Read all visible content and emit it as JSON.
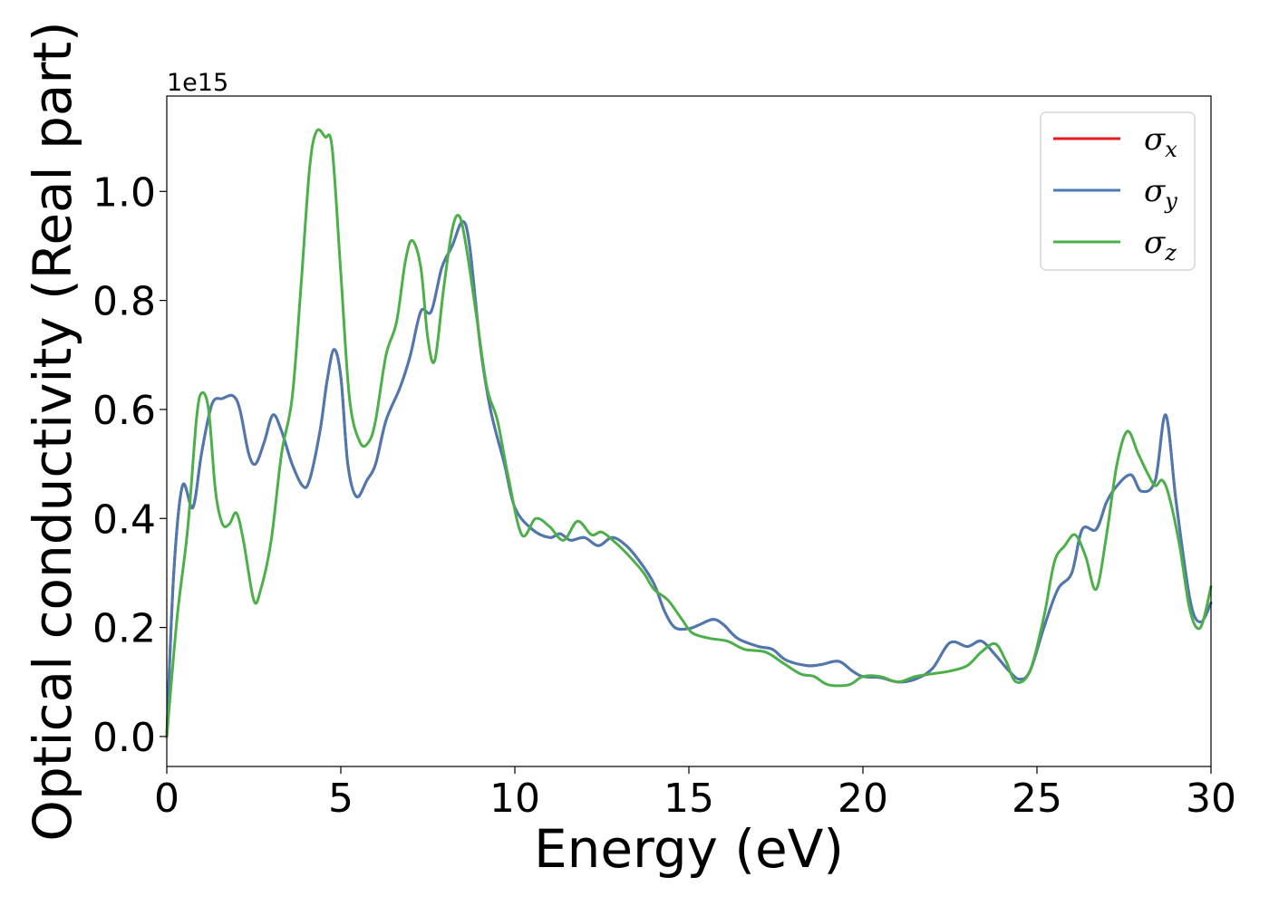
{
  "chart_data": {
    "type": "line",
    "title": "",
    "xlabel": "Energy (eV)",
    "ylabel": "Optical conductivity (Real part)",
    "y_offset_text": "1e15",
    "xlim": [
      0,
      30
    ],
    "ylim": [
      -0.055,
      1.175
    ],
    "xticks": [
      0,
      5,
      10,
      15,
      20,
      25,
      30
    ],
    "xtick_labels": [
      "0",
      "5",
      "10",
      "15",
      "20",
      "25",
      "30"
    ],
    "yticks": [
      0.0,
      0.2,
      0.4,
      0.6,
      0.8,
      1.0
    ],
    "ytick_labels": [
      "0.0",
      "0.2",
      "0.4",
      "0.6",
      "0.8",
      "1.0"
    ],
    "grid": false,
    "legend_position": "upper-right",
    "series": [
      {
        "name": "σx",
        "symbol": "σ",
        "subscript": "x",
        "color": "#e41a1c",
        "points": [
          [
            0,
            0.0
          ],
          [
            0.2,
            0.3
          ],
          [
            0.45,
            0.46
          ],
          [
            0.75,
            0.42
          ],
          [
            1.0,
            0.52
          ],
          [
            1.3,
            0.61
          ],
          [
            1.6,
            0.62
          ],
          [
            1.9,
            0.625
          ],
          [
            2.1,
            0.6
          ],
          [
            2.35,
            0.52
          ],
          [
            2.55,
            0.5
          ],
          [
            2.8,
            0.54
          ],
          [
            3.05,
            0.59
          ],
          [
            3.3,
            0.56
          ],
          [
            3.6,
            0.5
          ],
          [
            3.9,
            0.46
          ],
          [
            4.1,
            0.47
          ],
          [
            4.4,
            0.56
          ],
          [
            4.6,
            0.65
          ],
          [
            4.8,
            0.71
          ],
          [
            5.0,
            0.66
          ],
          [
            5.2,
            0.5
          ],
          [
            5.45,
            0.44
          ],
          [
            5.75,
            0.47
          ],
          [
            6.0,
            0.5
          ],
          [
            6.3,
            0.58
          ],
          [
            6.7,
            0.64
          ],
          [
            7.0,
            0.7
          ],
          [
            7.3,
            0.78
          ],
          [
            7.6,
            0.78
          ],
          [
            7.9,
            0.86
          ],
          [
            8.2,
            0.9
          ],
          [
            8.5,
            0.945
          ],
          [
            8.7,
            0.9
          ],
          [
            9.0,
            0.72
          ],
          [
            9.3,
            0.6
          ],
          [
            9.7,
            0.5
          ],
          [
            10.0,
            0.42
          ],
          [
            10.5,
            0.38
          ],
          [
            11.0,
            0.365
          ],
          [
            11.3,
            0.372
          ],
          [
            11.6,
            0.36
          ],
          [
            12.0,
            0.365
          ],
          [
            12.4,
            0.35
          ],
          [
            12.8,
            0.365
          ],
          [
            13.2,
            0.35
          ],
          [
            13.6,
            0.32
          ],
          [
            14.0,
            0.28
          ],
          [
            14.3,
            0.23
          ],
          [
            14.6,
            0.2
          ],
          [
            15.0,
            0.198
          ],
          [
            15.3,
            0.205
          ],
          [
            15.7,
            0.215
          ],
          [
            16.0,
            0.205
          ],
          [
            16.4,
            0.18
          ],
          [
            17.0,
            0.165
          ],
          [
            17.4,
            0.16
          ],
          [
            17.8,
            0.14
          ],
          [
            18.4,
            0.13
          ],
          [
            18.8,
            0.132
          ],
          [
            19.3,
            0.138
          ],
          [
            19.7,
            0.12
          ],
          [
            20.0,
            0.11
          ],
          [
            20.5,
            0.108
          ],
          [
            21.0,
            0.1
          ],
          [
            21.5,
            0.105
          ],
          [
            22.0,
            0.125
          ],
          [
            22.5,
            0.172
          ],
          [
            23.0,
            0.165
          ],
          [
            23.4,
            0.175
          ],
          [
            23.8,
            0.15
          ],
          [
            24.2,
            0.12
          ],
          [
            24.5,
            0.105
          ],
          [
            24.8,
            0.12
          ],
          [
            25.2,
            0.2
          ],
          [
            25.6,
            0.27
          ],
          [
            26.0,
            0.3
          ],
          [
            26.3,
            0.38
          ],
          [
            26.7,
            0.38
          ],
          [
            27.0,
            0.43
          ],
          [
            27.3,
            0.46
          ],
          [
            27.7,
            0.48
          ],
          [
            28.0,
            0.45
          ],
          [
            28.4,
            0.47
          ],
          [
            28.7,
            0.59
          ],
          [
            29.0,
            0.43
          ],
          [
            29.4,
            0.25
          ],
          [
            29.7,
            0.21
          ],
          [
            30.0,
            0.245
          ]
        ]
      },
      {
        "name": "σy",
        "symbol": "σ",
        "subscript": "y",
        "color": "#4a7ab0",
        "points": [
          [
            0,
            0.0
          ],
          [
            0.2,
            0.3
          ],
          [
            0.45,
            0.46
          ],
          [
            0.75,
            0.42
          ],
          [
            1.0,
            0.52
          ],
          [
            1.3,
            0.61
          ],
          [
            1.6,
            0.62
          ],
          [
            1.9,
            0.625
          ],
          [
            2.1,
            0.6
          ],
          [
            2.35,
            0.52
          ],
          [
            2.55,
            0.5
          ],
          [
            2.8,
            0.54
          ],
          [
            3.05,
            0.59
          ],
          [
            3.3,
            0.56
          ],
          [
            3.6,
            0.5
          ],
          [
            3.9,
            0.46
          ],
          [
            4.1,
            0.47
          ],
          [
            4.4,
            0.56
          ],
          [
            4.6,
            0.65
          ],
          [
            4.8,
            0.71
          ],
          [
            5.0,
            0.66
          ],
          [
            5.2,
            0.5
          ],
          [
            5.45,
            0.44
          ],
          [
            5.75,
            0.47
          ],
          [
            6.0,
            0.5
          ],
          [
            6.3,
            0.58
          ],
          [
            6.7,
            0.64
          ],
          [
            7.0,
            0.7
          ],
          [
            7.3,
            0.78
          ],
          [
            7.6,
            0.78
          ],
          [
            7.9,
            0.86
          ],
          [
            8.2,
            0.9
          ],
          [
            8.5,
            0.945
          ],
          [
            8.7,
            0.9
          ],
          [
            9.0,
            0.72
          ],
          [
            9.3,
            0.6
          ],
          [
            9.7,
            0.5
          ],
          [
            10.0,
            0.42
          ],
          [
            10.5,
            0.38
          ],
          [
            11.0,
            0.365
          ],
          [
            11.3,
            0.372
          ],
          [
            11.6,
            0.36
          ],
          [
            12.0,
            0.365
          ],
          [
            12.4,
            0.35
          ],
          [
            12.8,
            0.365
          ],
          [
            13.2,
            0.35
          ],
          [
            13.6,
            0.32
          ],
          [
            14.0,
            0.28
          ],
          [
            14.3,
            0.23
          ],
          [
            14.6,
            0.2
          ],
          [
            15.0,
            0.198
          ],
          [
            15.3,
            0.205
          ],
          [
            15.7,
            0.215
          ],
          [
            16.0,
            0.205
          ],
          [
            16.4,
            0.18
          ],
          [
            17.0,
            0.165
          ],
          [
            17.4,
            0.16
          ],
          [
            17.8,
            0.14
          ],
          [
            18.4,
            0.13
          ],
          [
            18.8,
            0.132
          ],
          [
            19.3,
            0.138
          ],
          [
            19.7,
            0.12
          ],
          [
            20.0,
            0.11
          ],
          [
            20.5,
            0.108
          ],
          [
            21.0,
            0.1
          ],
          [
            21.5,
            0.105
          ],
          [
            22.0,
            0.125
          ],
          [
            22.5,
            0.172
          ],
          [
            23.0,
            0.165
          ],
          [
            23.4,
            0.175
          ],
          [
            23.8,
            0.15
          ],
          [
            24.2,
            0.12
          ],
          [
            24.5,
            0.105
          ],
          [
            24.8,
            0.12
          ],
          [
            25.2,
            0.2
          ],
          [
            25.6,
            0.27
          ],
          [
            26.0,
            0.3
          ],
          [
            26.3,
            0.38
          ],
          [
            26.7,
            0.38
          ],
          [
            27.0,
            0.43
          ],
          [
            27.3,
            0.46
          ],
          [
            27.7,
            0.48
          ],
          [
            28.0,
            0.45
          ],
          [
            28.4,
            0.47
          ],
          [
            28.7,
            0.59
          ],
          [
            29.0,
            0.43
          ],
          [
            29.4,
            0.25
          ],
          [
            29.7,
            0.21
          ],
          [
            30.0,
            0.245
          ]
        ]
      },
      {
        "name": "σz",
        "symbol": "σ",
        "subscript": "z",
        "color": "#4daf4a",
        "points": [
          [
            0,
            0.0
          ],
          [
            0.3,
            0.22
          ],
          [
            0.6,
            0.38
          ],
          [
            0.85,
            0.58
          ],
          [
            1.0,
            0.63
          ],
          [
            1.2,
            0.6
          ],
          [
            1.4,
            0.45
          ],
          [
            1.6,
            0.39
          ],
          [
            1.8,
            0.39
          ],
          [
            2.0,
            0.41
          ],
          [
            2.2,
            0.36
          ],
          [
            2.5,
            0.25
          ],
          [
            2.7,
            0.27
          ],
          [
            3.0,
            0.36
          ],
          [
            3.3,
            0.52
          ],
          [
            3.6,
            0.62
          ],
          [
            3.85,
            0.82
          ],
          [
            4.1,
            1.04
          ],
          [
            4.3,
            1.11
          ],
          [
            4.55,
            1.1
          ],
          [
            4.75,
            1.08
          ],
          [
            5.0,
            0.85
          ],
          [
            5.25,
            0.62
          ],
          [
            5.55,
            0.54
          ],
          [
            5.8,
            0.54
          ],
          [
            6.0,
            0.58
          ],
          [
            6.3,
            0.7
          ],
          [
            6.6,
            0.76
          ],
          [
            6.85,
            0.87
          ],
          [
            7.05,
            0.91
          ],
          [
            7.3,
            0.86
          ],
          [
            7.5,
            0.73
          ],
          [
            7.7,
            0.69
          ],
          [
            7.95,
            0.82
          ],
          [
            8.2,
            0.93
          ],
          [
            8.4,
            0.955
          ],
          [
            8.6,
            0.9
          ],
          [
            8.9,
            0.77
          ],
          [
            9.2,
            0.64
          ],
          [
            9.5,
            0.58
          ],
          [
            9.8,
            0.48
          ],
          [
            10.2,
            0.37
          ],
          [
            10.6,
            0.4
          ],
          [
            11.0,
            0.385
          ],
          [
            11.4,
            0.36
          ],
          [
            11.8,
            0.395
          ],
          [
            12.2,
            0.37
          ],
          [
            12.5,
            0.375
          ],
          [
            12.9,
            0.355
          ],
          [
            13.3,
            0.33
          ],
          [
            13.7,
            0.3
          ],
          [
            14.0,
            0.27
          ],
          [
            14.4,
            0.25
          ],
          [
            14.8,
            0.215
          ],
          [
            15.1,
            0.19
          ],
          [
            15.6,
            0.18
          ],
          [
            16.1,
            0.175
          ],
          [
            16.6,
            0.16
          ],
          [
            17.2,
            0.155
          ],
          [
            17.7,
            0.135
          ],
          [
            18.2,
            0.115
          ],
          [
            18.6,
            0.11
          ],
          [
            19.0,
            0.095
          ],
          [
            19.6,
            0.095
          ],
          [
            20.0,
            0.11
          ],
          [
            20.5,
            0.11
          ],
          [
            21.0,
            0.1
          ],
          [
            21.5,
            0.11
          ],
          [
            22.0,
            0.115
          ],
          [
            22.5,
            0.12
          ],
          [
            23.0,
            0.13
          ],
          [
            23.4,
            0.155
          ],
          [
            23.8,
            0.17
          ],
          [
            24.1,
            0.14
          ],
          [
            24.4,
            0.1
          ],
          [
            24.8,
            0.12
          ],
          [
            25.2,
            0.22
          ],
          [
            25.5,
            0.32
          ],
          [
            25.8,
            0.35
          ],
          [
            26.1,
            0.37
          ],
          [
            26.4,
            0.33
          ],
          [
            26.7,
            0.27
          ],
          [
            27.0,
            0.37
          ],
          [
            27.3,
            0.5
          ],
          [
            27.6,
            0.56
          ],
          [
            27.9,
            0.52
          ],
          [
            28.2,
            0.48
          ],
          [
            28.4,
            0.46
          ],
          [
            28.6,
            0.47
          ],
          [
            28.8,
            0.44
          ],
          [
            29.1,
            0.35
          ],
          [
            29.4,
            0.23
          ],
          [
            29.7,
            0.2
          ],
          [
            30.0,
            0.275
          ]
        ]
      }
    ]
  }
}
